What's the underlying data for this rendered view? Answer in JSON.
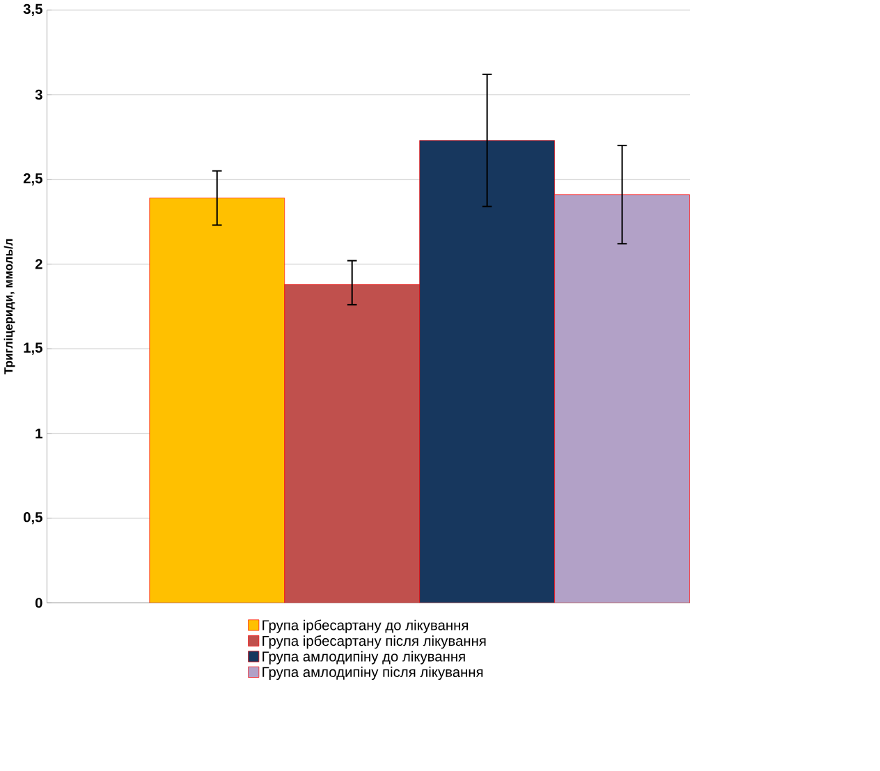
{
  "chart_data": {
    "type": "bar",
    "ylabel": "Тригліцериди, ммоль/л",
    "categories": [
      null
    ],
    "series": [
      {
        "name": "Група ірбесартану до лікування",
        "color": "#ffc000",
        "values": [
          2.39
        ],
        "errors": [
          [
            2.23,
            2.55
          ]
        ]
      },
      {
        "name": "Група ірбесартану після лікування",
        "color": "#c0504d",
        "values": [
          1.88
        ],
        "errors": [
          [
            1.76,
            2.02
          ]
        ]
      },
      {
        "name": "Група амлодипіну до лікування",
        "color": "#17375e",
        "values": [
          2.73
        ],
        "errors": [
          [
            2.34,
            3.12
          ]
        ]
      },
      {
        "name": "Група амлодипіну після лікування",
        "color": "#b2a1c7",
        "values": [
          2.41
        ],
        "errors": [
          [
            2.12,
            2.7
          ]
        ]
      }
    ],
    "ylim": [
      0,
      3.5
    ],
    "yticks": [
      0,
      {
        "value": 0.5,
        "label": "0,5"
      },
      1,
      {
        "value": 1.5,
        "label": "1,5"
      },
      2,
      {
        "value": 2.5,
        "label": "2,5"
      },
      3,
      {
        "value": 3.5,
        "label": "3,5"
      }
    ],
    "grid": "y",
    "legend": "bottom"
  }
}
